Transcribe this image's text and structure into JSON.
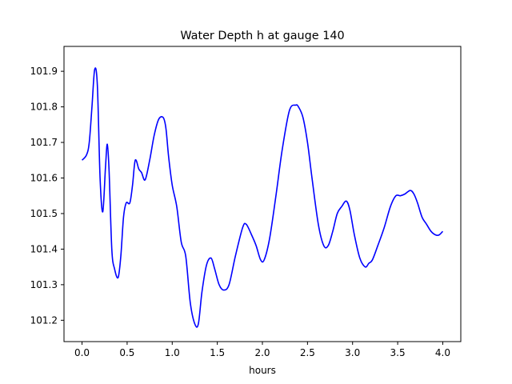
{
  "chart_data": {
    "type": "line",
    "title": "Water Depth h at gauge 140",
    "xlabel": "hours",
    "ylabel": "",
    "xlim": [
      -0.2,
      4.2
    ],
    "ylim": [
      101.14,
      101.97
    ],
    "xticks": [
      0.0,
      0.5,
      1.0,
      1.5,
      2.0,
      2.5,
      3.0,
      3.5,
      4.0
    ],
    "xtick_labels": [
      "0.0",
      "0.5",
      "1.0",
      "1.5",
      "2.0",
      "2.5",
      "3.0",
      "3.5",
      "4.0"
    ],
    "yticks": [
      101.2,
      101.3,
      101.4,
      101.5,
      101.6,
      101.7,
      101.8,
      101.9
    ],
    "ytick_labels": [
      "101.2",
      "101.3",
      "101.4",
      "101.5",
      "101.6",
      "101.7",
      "101.8",
      "101.9"
    ],
    "grid": false,
    "legend": "none",
    "series": [
      {
        "color": "#0000ff",
        "x": [
          0.0,
          0.05,
          0.08,
          0.11,
          0.14,
          0.17,
          0.2,
          0.23,
          0.26,
          0.28,
          0.3,
          0.33,
          0.36,
          0.4,
          0.43,
          0.46,
          0.49,
          0.53,
          0.56,
          0.59,
          0.63,
          0.66,
          0.7,
          0.75,
          0.8,
          0.85,
          0.9,
          0.93,
          0.96,
          1.0,
          1.05,
          1.1,
          1.15,
          1.2,
          1.25,
          1.29,
          1.33,
          1.38,
          1.43,
          1.47,
          1.52,
          1.57,
          1.63,
          1.7,
          1.78,
          1.82,
          1.88,
          1.93,
          1.98,
          2.02,
          2.08,
          2.15,
          2.22,
          2.3,
          2.37,
          2.4,
          2.45,
          2.5,
          2.55,
          2.62,
          2.68,
          2.73,
          2.78,
          2.83,
          2.88,
          2.93,
          2.97,
          3.02,
          3.08,
          3.14,
          3.18,
          3.22,
          3.28,
          3.35,
          3.42,
          3.48,
          3.53,
          3.58,
          3.64,
          3.68,
          3.72,
          3.77,
          3.82,
          3.87,
          3.92,
          3.96,
          4.0
        ],
        "y": [
          101.65,
          101.665,
          101.7,
          101.8,
          101.905,
          101.86,
          101.6,
          101.505,
          101.63,
          101.695,
          101.62,
          101.4,
          101.345,
          101.32,
          101.38,
          101.49,
          101.53,
          101.53,
          101.58,
          101.65,
          101.625,
          101.615,
          101.595,
          101.65,
          101.72,
          101.765,
          101.77,
          101.74,
          101.66,
          101.58,
          101.52,
          101.42,
          101.38,
          101.25,
          101.19,
          101.19,
          101.28,
          101.355,
          101.375,
          101.345,
          101.3,
          101.285,
          101.3,
          101.38,
          101.46,
          101.47,
          101.44,
          101.41,
          101.37,
          101.37,
          101.43,
          101.55,
          101.68,
          101.79,
          101.805,
          101.8,
          101.77,
          101.7,
          101.6,
          101.47,
          101.41,
          101.41,
          101.45,
          101.5,
          101.52,
          101.535,
          101.51,
          101.44,
          101.375,
          101.35,
          101.36,
          101.37,
          101.41,
          101.46,
          101.52,
          101.55,
          101.55,
          101.555,
          101.565,
          101.555,
          101.53,
          101.49,
          101.47,
          101.45,
          101.44,
          101.44,
          101.45
        ]
      }
    ]
  }
}
